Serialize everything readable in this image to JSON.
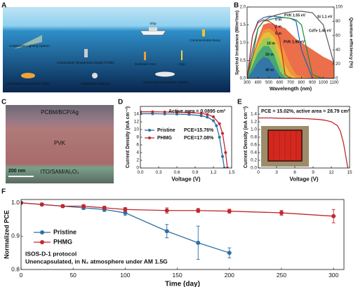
{
  "panel_labels": [
    "A",
    "B",
    "C",
    "D",
    "E",
    "F"
  ],
  "illustration": {
    "labels": [
      "Ship",
      "Communication Buoy",
      "Underwater Lighting System",
      "Conductivity-Temperature-Depth Profiler",
      "Sediment Core",
      "Argo",
      "Untethered Underwater Robot",
      "Underwater Detector",
      "Unmanned Underwater Vehicle"
    ]
  },
  "cross_section": {
    "layers": [
      "PCBM/BCP/Ag",
      "PVK",
      "ITO/SAM/Al₂O₃"
    ],
    "scale_bar": "200 nm"
  },
  "chart_data": [
    {
      "type": "area",
      "xlabel": "Wavelength (nm)",
      "ylabel": "Spectral Irradiance (W/m²/nm)",
      "y2label": "Quantum efficiency (%)",
      "xlim": [
        300,
        1100
      ],
      "xticks": [
        300,
        400,
        500,
        600,
        700,
        800,
        900,
        1000,
        1100
      ],
      "ylim": [
        0,
        2
      ],
      "yticks": [
        {
          "value": 0,
          "label": "0.0"
        },
        0.5,
        {
          "value": 1,
          "label": "1.0"
        },
        1.5,
        {
          "value": 2,
          "label": "2.0"
        }
      ],
      "y2lim": [
        0,
        100
      ],
      "y2ticks": [
        0,
        20,
        40,
        60,
        80,
        100
      ],
      "series": [
        {
          "name": "0 m",
          "color": "#e8562a",
          "x": [
            300,
            350,
            400,
            450,
            500,
            550,
            600,
            650,
            700,
            750,
            800,
            900,
            1000,
            1100
          ],
          "values": [
            0,
            0.6,
            1.1,
            1.5,
            1.55,
            1.5,
            1.45,
            1.4,
            1.25,
            1.1,
            1.0,
            0.8,
            0.6,
            0.45
          ]
        },
        {
          "name": "2 m",
          "color": "#f29a3a",
          "x": [
            300,
            350,
            400,
            450,
            500,
            550,
            600,
            650,
            700,
            750,
            800,
            900,
            1000,
            1100
          ],
          "values": [
            0,
            0.55,
            1.0,
            1.35,
            1.4,
            1.3,
            1.1,
            0.7,
            0.35,
            0.1,
            0.05,
            0,
            0,
            0
          ]
        },
        {
          "name": "5 m",
          "color": "#e8c43a",
          "x": [
            300,
            350,
            400,
            450,
            500,
            550,
            600,
            650,
            700,
            750,
            800,
            900,
            1000,
            1100
          ],
          "values": [
            0,
            0.5,
            0.95,
            1.25,
            1.3,
            1.15,
            0.8,
            0.35,
            0.1,
            0.02,
            0,
            0,
            0,
            0
          ]
        },
        {
          "name": "10 m",
          "color": "#8ccf5a",
          "x": [
            300,
            350,
            400,
            450,
            500,
            550,
            600,
            650,
            700,
            750,
            800,
            900,
            1000,
            1100
          ],
          "values": [
            0,
            0.45,
            0.85,
            1.1,
            1.15,
            0.95,
            0.5,
            0.12,
            0.02,
            0,
            0,
            0,
            0,
            0
          ]
        },
        {
          "name": "20 m",
          "color": "#3aa07a",
          "x": [
            300,
            350,
            400,
            450,
            500,
            550,
            600,
            650,
            700,
            750,
            800,
            900,
            1000,
            1100
          ],
          "values": [
            0,
            0.35,
            0.7,
            0.9,
            0.9,
            0.65,
            0.2,
            0.03,
            0,
            0,
            0,
            0,
            0,
            0
          ]
        },
        {
          "name": "40 m",
          "color": "#2f6fb0",
          "x": [
            300,
            350,
            400,
            450,
            500,
            550,
            600,
            650,
            700,
            750,
            800,
            900,
            1000,
            1100
          ],
          "values": [
            0,
            0.2,
            0.45,
            0.6,
            0.55,
            0.3,
            0.05,
            0,
            0,
            0,
            0,
            0,
            0,
            0
          ]
        },
        {
          "name": "Si 1.1 eV",
          "color": "#555555",
          "axis": "y2",
          "x": [
            300,
            350,
            400,
            450,
            500,
            550,
            600,
            650,
            700,
            750,
            800,
            900,
            1000,
            1100
          ],
          "values": [
            0,
            40,
            70,
            80,
            85,
            88,
            90,
            92,
            93,
            94,
            94,
            92,
            75,
            20
          ]
        },
        {
          "name": "PVK 1.55 eV",
          "color": "#1f5fbf",
          "axis": "y2",
          "x": [
            300,
            350,
            400,
            450,
            500,
            550,
            600,
            650,
            700,
            750,
            800,
            900,
            1000,
            1100
          ],
          "values": [
            0,
            60,
            80,
            85,
            87,
            87,
            86,
            85,
            84,
            80,
            40,
            0,
            0,
            0
          ]
        },
        {
          "name": "CdTe 1.45 eV",
          "color": "#1e8a3a",
          "axis": "y2",
          "x": [
            300,
            350,
            400,
            450,
            500,
            550,
            600,
            650,
            700,
            750,
            800,
            900,
            1000,
            1100
          ],
          "values": [
            0,
            30,
            70,
            80,
            82,
            84,
            85,
            85,
            84,
            82,
            75,
            5,
            0,
            0
          ]
        },
        {
          "name": "PVK 1.96 eV",
          "color": "#c0282e",
          "axis": "y2",
          "x": [
            300,
            350,
            400,
            450,
            500,
            550,
            600,
            650,
            700,
            750,
            800,
            900,
            1000,
            1100
          ],
          "values": [
            0,
            60,
            78,
            82,
            80,
            75,
            55,
            5,
            0,
            0,
            0,
            0,
            0,
            0
          ]
        }
      ]
    },
    {
      "type": "line",
      "title": "Active area = 0.0895 cm²",
      "xlabel": "Voltage (V)",
      "ylabel": "Current Density (mA cm⁻²)",
      "xlim": [
        0,
        1.5
      ],
      "xticks": [
        {
          "value": 0,
          "label": "0.0"
        },
        0.3,
        0.6,
        0.9,
        1.2,
        1.5
      ],
      "ylim": [
        0,
        16
      ],
      "yticks": [
        0,
        2,
        4,
        6,
        8,
        10,
        12,
        14
      ],
      "markers": true,
      "legend": "left",
      "series": [
        {
          "name": "Pristine",
          "pce": "PCE=15.76%",
          "color": "#2e6fa3",
          "x": [
            0,
            0.2,
            0.4,
            0.6,
            0.8,
            1.0,
            1.1,
            1.2,
            1.25,
            1.3,
            1.35,
            1.38
          ],
          "values": [
            14.1,
            14.1,
            14.05,
            14.0,
            13.9,
            13.6,
            13.2,
            12.3,
            11.0,
            8.0,
            3.0,
            0
          ]
        },
        {
          "name": "PHMG",
          "pce": "PCE=17.08%",
          "color": "#c0282e",
          "x": [
            0,
            0.2,
            0.4,
            0.6,
            0.8,
            1.0,
            1.1,
            1.2,
            1.3,
            1.35,
            1.4,
            1.43
          ],
          "values": [
            14.6,
            14.6,
            14.55,
            14.5,
            14.4,
            14.2,
            13.9,
            13.3,
            11.5,
            9.0,
            4.0,
            0
          ]
        }
      ]
    },
    {
      "type": "line",
      "title": "PCE = 15.02%, active area = 28.79 cm²",
      "xlabel": "Voltage (V)",
      "ylabel": "Current Density (mA cm⁻²)",
      "xlim": [
        0,
        15
      ],
      "xticks": [
        0,
        3,
        6,
        9,
        12,
        15
      ],
      "ylim": [
        0,
        1.6
      ],
      "yticks": [
        {
          "value": 0,
          "label": "0.0"
        },
        0.2,
        0.4,
        0.6,
        0.8,
        {
          "value": 1,
          "label": "1.0"
        },
        1.2,
        1.4
      ],
      "series": [
        {
          "color": "#c0282e",
          "x": [
            0,
            2,
            4,
            6,
            8,
            10,
            11,
            12,
            13,
            13.5,
            14,
            14.5,
            14.7
          ],
          "values": [
            1.3,
            1.3,
            1.29,
            1.29,
            1.28,
            1.26,
            1.24,
            1.2,
            1.1,
            0.95,
            0.65,
            0.2,
            0
          ]
        }
      ]
    },
    {
      "type": "line",
      "xlabel": "Time (day)",
      "ylabel": "Normalized PCE",
      "annotations": [
        "ISOS-D-1 protocol",
        "Unencapsulated, in N₂ atmosphere under AM 1.5G"
      ],
      "xlim": [
        0,
        310
      ],
      "xticks": [
        0,
        50,
        100,
        150,
        200,
        250,
        300
      ],
      "ylim": [
        0.8,
        1.01
      ],
      "yticks": [
        0.8,
        0.9,
        {
          "value": 1,
          "label": "1.0"
        }
      ],
      "markers": true,
      "legend": "lower left",
      "series": [
        {
          "name": "Pristine",
          "color": "#2e6fa3",
          "x": [
            0,
            20,
            40,
            60,
            80,
            100,
            140,
            170,
            200
          ],
          "values": [
            1.0,
            0.995,
            0.99,
            0.985,
            0.98,
            0.97,
            0.915,
            0.88,
            0.85
          ],
          "errors": [
            0.003,
            0.004,
            0.004,
            0.005,
            0.006,
            0.008,
            0.02,
            0.05,
            0.015
          ]
        },
        {
          "name": "PHMG",
          "color": "#c0282e",
          "x": [
            0,
            20,
            40,
            60,
            80,
            100,
            140,
            170,
            200,
            250,
            300
          ],
          "values": [
            1.0,
            0.995,
            0.99,
            0.99,
            0.985,
            0.98,
            0.977,
            0.977,
            0.975,
            0.97,
            0.96
          ],
          "errors": [
            0.002,
            0.003,
            0.003,
            0.004,
            0.005,
            0.006,
            0.008,
            0.006,
            0.006,
            0.007,
            0.02
          ]
        }
      ]
    }
  ]
}
